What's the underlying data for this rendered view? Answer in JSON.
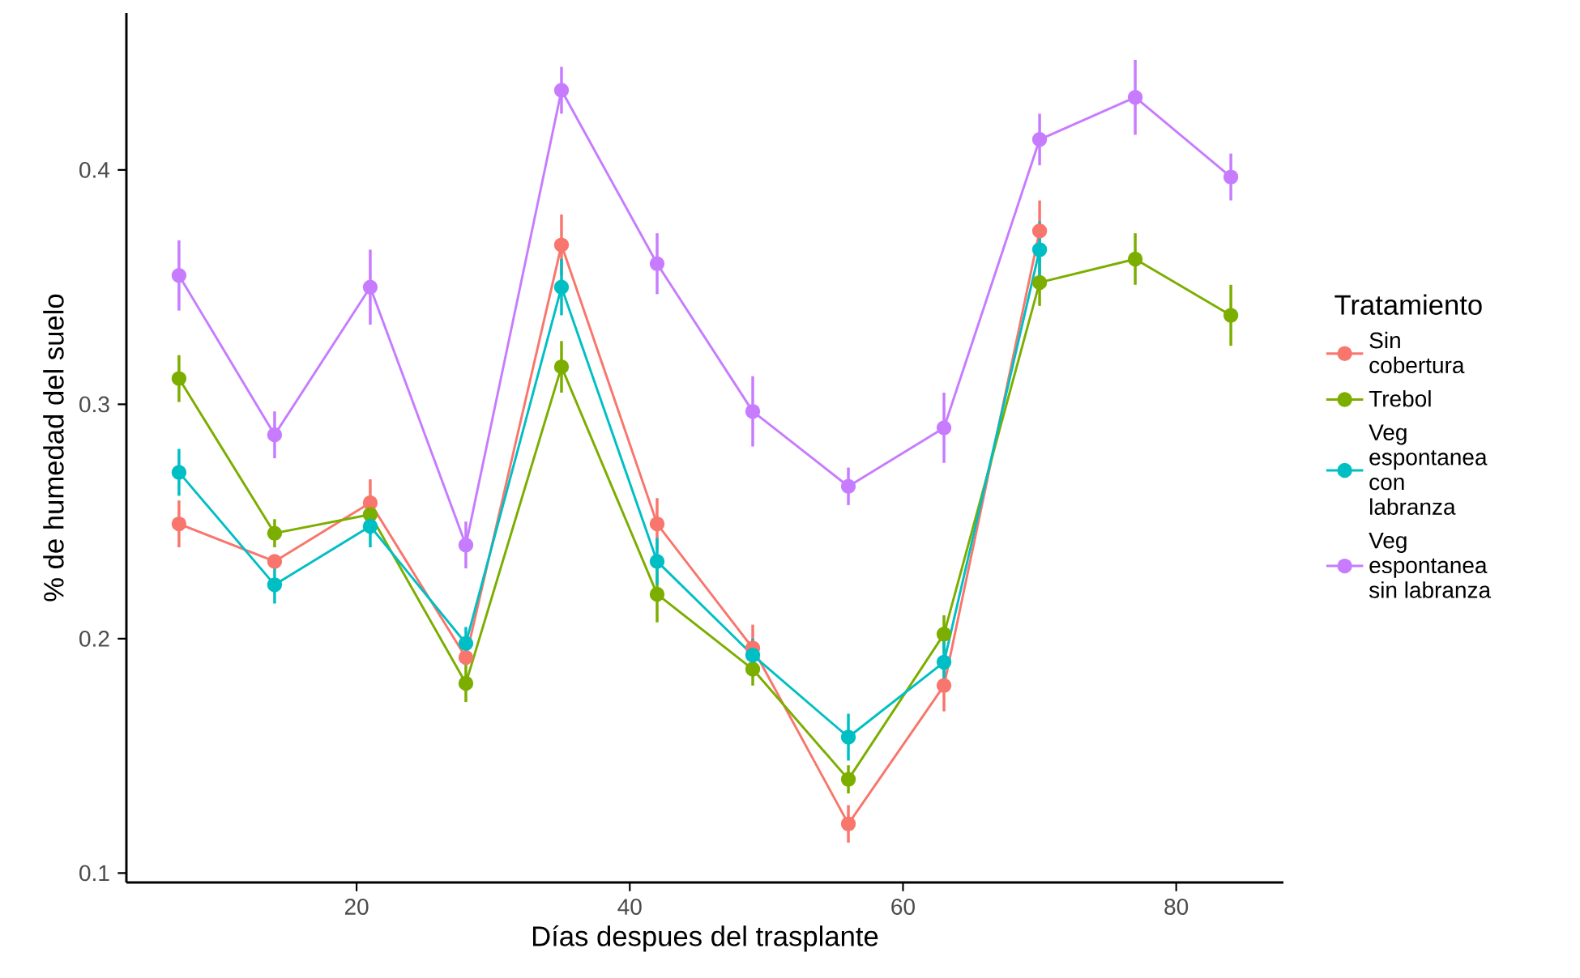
{
  "chart_data": {
    "type": "line",
    "xlabel": "Días despues del trasplante",
    "ylabel": "% de humedad del suelo",
    "legend_title": "Tratamiento",
    "x": [
      7,
      14,
      21,
      28,
      35,
      42,
      49,
      56,
      63,
      70,
      77,
      84
    ],
    "xlim": [
      3.15,
      87.85
    ],
    "xticks": [
      20,
      40,
      60,
      80
    ],
    "ylim": [
      0.096,
      0.467
    ],
    "yticks": [
      0.1,
      0.2,
      0.3,
      0.4
    ],
    "grid": false,
    "legend": "right",
    "marker": "circle",
    "line_style": "solid",
    "series": [
      {
        "name": "Sin cobertura",
        "color": "#f8766d",
        "values": [
          0.249,
          0.233,
          0.258,
          0.192,
          0.368,
          0.249,
          0.196,
          0.121,
          0.18,
          0.374,
          null,
          null
        ],
        "errors": [
          0.01,
          null,
          0.01,
          null,
          0.013,
          0.011,
          0.01,
          0.008,
          0.011,
          0.013,
          null,
          null
        ]
      },
      {
        "name": "Trebol",
        "color": "#7cae00",
        "values": [
          0.311,
          0.245,
          0.253,
          0.181,
          0.316,
          0.219,
          0.187,
          0.14,
          0.202,
          0.352,
          0.362,
          0.338
        ],
        "errors": [
          0.01,
          0.006,
          0.006,
          0.008,
          0.011,
          0.012,
          0.007,
          0.006,
          0.008,
          0.01,
          0.011,
          0.013
        ]
      },
      {
        "name": "Veg espontanea con labranza",
        "color": "#00bfc4",
        "values": [
          0.271,
          0.223,
          0.248,
          0.198,
          0.35,
          0.233,
          0.193,
          0.158,
          0.19,
          0.366,
          null,
          null
        ],
        "errors": [
          0.01,
          0.008,
          0.009,
          0.007,
          0.012,
          0.01,
          0.007,
          0.01,
          0.01,
          0.012,
          null,
          null
        ]
      },
      {
        "name": "Veg espontanea sin labranza",
        "color": "#c77cff",
        "values": [
          0.355,
          0.287,
          0.35,
          0.24,
          0.434,
          0.36,
          0.297,
          0.265,
          0.29,
          0.413,
          0.431,
          0.397
        ],
        "errors": [
          0.015,
          0.01,
          0.016,
          0.01,
          0.01,
          0.013,
          0.015,
          0.008,
          0.015,
          0.011,
          0.016,
          0.01
        ]
      }
    ]
  }
}
